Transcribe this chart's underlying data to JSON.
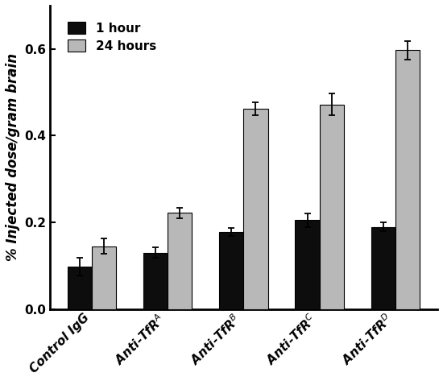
{
  "categories": [
    "Control IgG",
    "Anti-TfR$^A$",
    "Anti-TfR$^B$",
    "Anti-TfR$^C$",
    "Anti-TfR$^D$"
  ],
  "values_1hr": [
    0.098,
    0.13,
    0.178,
    0.205,
    0.19
  ],
  "values_24hr": [
    0.145,
    0.222,
    0.462,
    0.472,
    0.597
  ],
  "errors_1hr": [
    0.02,
    0.012,
    0.01,
    0.015,
    0.01
  ],
  "errors_24hr": [
    0.018,
    0.012,
    0.015,
    0.025,
    0.022
  ],
  "color_1hr": "#0d0d0d",
  "color_24hr": "#b8b8b8",
  "ylabel": "% Injected dose/gram brain",
  "ylim": [
    0.0,
    0.7
  ],
  "yticks": [
    0.0,
    0.2,
    0.4,
    0.6
  ],
  "legend_1hr": "1 hour",
  "legend_24hr": "24 hours",
  "bar_width": 0.32,
  "figsize": [
    5.5,
    4.73
  ],
  "dpi": 100,
  "tick_fontsize": 11,
  "label_fontsize": 12,
  "legend_fontsize": 11
}
